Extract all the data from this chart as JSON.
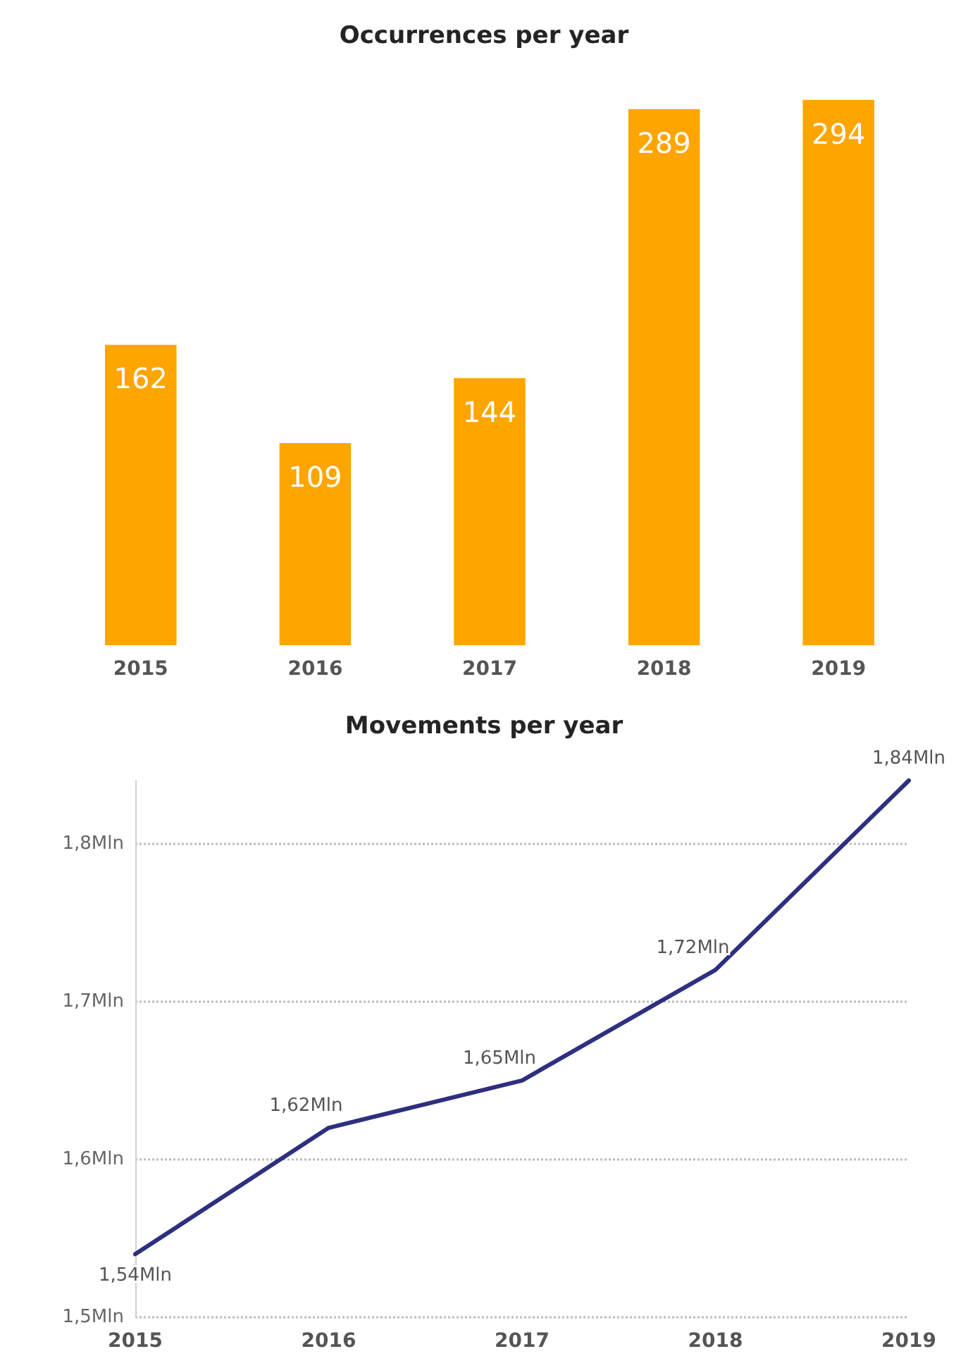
{
  "chart_data": [
    {
      "type": "bar",
      "title": "Occurrences per year",
      "categories": [
        "2015",
        "2016",
        "2017",
        "2018",
        "2019"
      ],
      "values": [
        162,
        109,
        144,
        289,
        294
      ],
      "color": "#ffa500",
      "data_labels": true,
      "tick_labels": "x"
    },
    {
      "type": "line",
      "title": "Movements per year",
      "categories": [
        "2015",
        "2016",
        "2017",
        "2018",
        "2019"
      ],
      "values": [
        1.54,
        1.62,
        1.65,
        1.72,
        1.84
      ],
      "value_labels": [
        "1,54Mln",
        "1,62Mln",
        "1,65Mln",
        "1,72Mln",
        "1,84Mln"
      ],
      "color": "#2e2f7f",
      "ylim": [
        1.5,
        1.84
      ],
      "yticks": [
        {
          "value": 1.5,
          "label": "1,5Mln"
        },
        {
          "value": 1.6,
          "label": "1,6Mln"
        },
        {
          "value": 1.7,
          "label": "1,7Mln"
        },
        {
          "value": 1.8,
          "label": "1,8Mln"
        }
      ],
      "grid": "y",
      "marker": "none",
      "line_style": "solid"
    }
  ]
}
